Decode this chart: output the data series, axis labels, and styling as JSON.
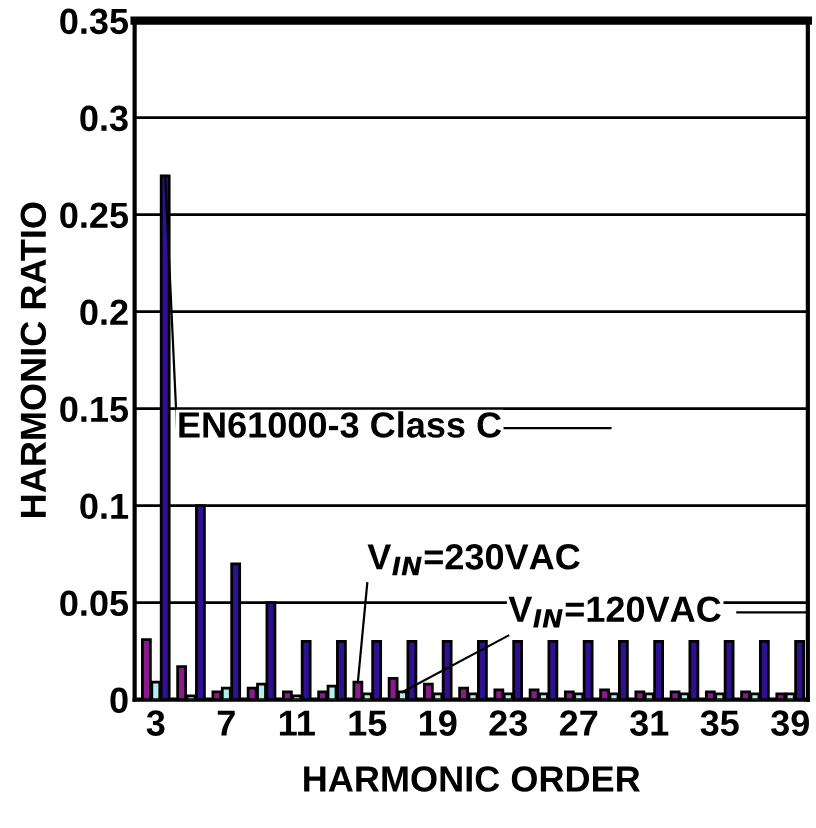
{
  "chart_data": {
    "type": "bar",
    "xlabel": "HARMONIC ORDER",
    "ylabel": "HARMONIC RATIO",
    "categories": [
      "3",
      null,
      "7",
      null,
      "11",
      null,
      "15",
      null,
      "19",
      null,
      "23",
      null,
      "27",
      null,
      "31",
      null,
      "35",
      null,
      "39"
    ],
    "series": [
      {
        "name": "V$_{IN}$=230VAC",
        "color": "#8b1a8b",
        "values": [
          0.031,
          0.017,
          0.004,
          0.006,
          0.004,
          0.004,
          0.009,
          0.011,
          0.008,
          0.006,
          0.005,
          0.005,
          0.004,
          0.005,
          0.004,
          0.004,
          0.004,
          0.004,
          0.003
        ]
      },
      {
        "name": "V$_{IN}$=120VAC",
        "color": "#b0f0e8",
        "values": [
          0.009,
          0.002,
          0.006,
          0.008,
          0.002,
          0.007,
          0.003,
          0.004,
          0.003,
          0.003,
          0.003,
          0.003,
          0.003,
          0.003,
          0.003,
          0.003,
          0.003,
          0.003,
          0.003
        ]
      },
      {
        "name": "EN61000-3 Class C",
        "color": "#2e1090",
        "values": [
          0.27,
          0.1,
          0.07,
          0.05,
          0.03,
          0.03,
          0.03,
          0.03,
          0.03,
          0.03,
          0.03,
          0.03,
          0.03,
          0.03,
          0.03,
          0.03,
          0.03,
          0.03,
          0.03
        ]
      }
    ],
    "ylim": [
      0,
      0.35
    ],
    "yticks": [
      0,
      0.05,
      0.1,
      0.15,
      0.2,
      0.25,
      0.3,
      0.35
    ],
    "grid": "y"
  }
}
